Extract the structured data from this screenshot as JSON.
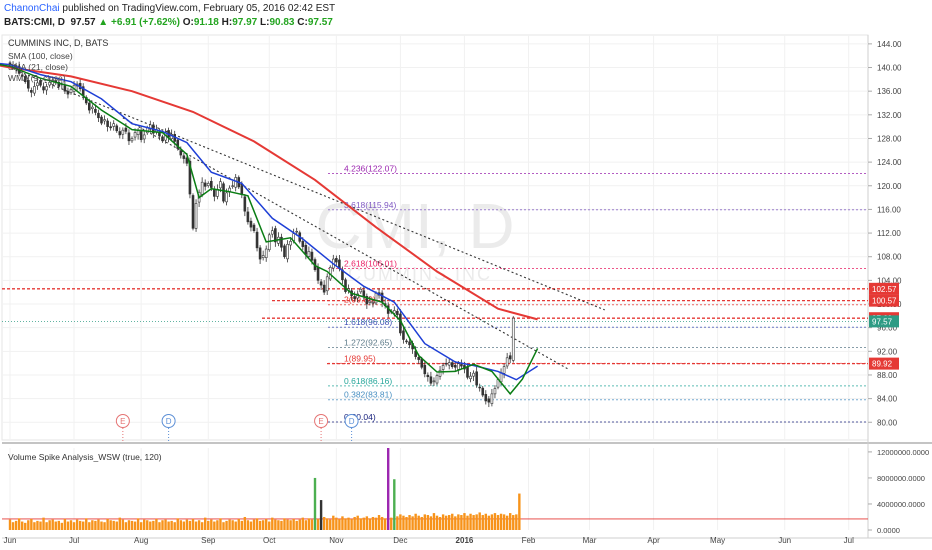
{
  "header": {
    "author": "ChanonChai",
    "published_text": " published on TradingView.com, February 05, 2016 02:42 EST",
    "symbol": "BATS:CMI, D",
    "last": "97.57",
    "change": "+6.91 (+7.62%)",
    "open_label": "O:",
    "open": "91.18",
    "high_label": "H:",
    "high": "97.97",
    "low_label": "L:",
    "low": "90.83",
    "close_label": "C:",
    "close": "97.57"
  },
  "watermark": {
    "symbol": "CMI, D",
    "name": "CUMMINS INC"
  },
  "chart_data": [
    {
      "type": "line",
      "title": "CUMMINS INC, D, BATS",
      "indicators": [
        "SMA (100, close)",
        "SMA (21, close)",
        "WMA (9, close)"
      ],
      "ylim": [
        77,
        145.5
      ],
      "y_ticks": [
        80,
        84,
        88,
        92,
        96,
        100,
        104,
        108,
        112,
        116,
        120,
        124,
        128,
        132,
        136,
        140,
        144
      ],
      "y_tick_labels": [
        "80.00",
        "84.00",
        "88.00",
        "92.00",
        "96.00",
        "100.00",
        "104.00",
        "108.00",
        "112.00",
        "116.00",
        "120.00",
        "124.00",
        "128.00",
        "132.00",
        "136.00",
        "140.00",
        "144.00"
      ],
      "x_tick_labels": [
        "Jun",
        "Jul",
        "Aug",
        "Sep",
        "Oct",
        "Nov",
        "Dec",
        "2016",
        "Feb",
        "Mar",
        "Apr",
        "May",
        "Jun",
        "Jul"
      ],
      "x_tick_idx": [
        0,
        21,
        43,
        65,
        85,
        107,
        128,
        149,
        170,
        190,
        211,
        232,
        254,
        275
      ],
      "date_range": [
        "2015-06-01",
        "2016-07-01"
      ],
      "close": [
        140.5,
        140.2,
        139.8,
        139.0,
        138.5,
        137.6,
        136.5,
        135.8,
        136.8,
        137.4,
        137.0,
        136.2,
        136.8,
        137.5,
        137.9,
        137.4,
        136.8,
        137.2,
        136.0,
        135.5,
        136.3,
        137.0,
        137.2,
        136.4,
        135.2,
        134.0,
        132.8,
        133.3,
        132.4,
        131.5,
        130.6,
        131.2,
        130.0,
        129.8,
        130.5,
        129.3,
        128.6,
        129.4,
        129.2,
        127.6,
        128.0,
        129.0,
        129.3,
        127.8,
        128.6,
        129.8,
        130.3,
        128.9,
        129.5,
        128.4,
        127.6,
        129.0,
        128.2,
        128.7,
        127.5,
        126.3,
        125.2,
        124.6,
        123.8,
        118.6,
        112.8,
        117.0,
        118.9,
        120.6,
        119.9,
        120.4,
        119.7,
        118.2,
        119.4,
        120.7,
        117.4,
        118.8,
        119.6,
        120.0,
        121.4,
        119.8,
        118.5,
        115.7,
        113.9,
        113.0,
        112.4,
        109.5,
        107.6,
        108.2,
        109.3,
        111.7,
        112.4,
        110.5,
        111.3,
        109.6,
        108.0,
        110.1,
        110.6,
        111.9,
        112.3,
        110.6,
        109.7,
        108.4,
        108.9,
        107.4,
        105.8,
        104.0,
        103.2,
        102.0,
        104.6,
        106.2,
        107.6,
        107.1,
        106.0,
        104.1,
        102.1,
        102.6,
        101.4,
        100.9,
        101.7,
        102.5,
        101.3,
        100.0,
        100.5,
        100.3,
        101.8,
        101.5,
        100.3,
        99.7,
        98.4,
        98.8,
        98.9,
        98.2,
        95.1,
        94.0,
        93.6,
        93.1,
        92.4,
        91.1,
        90.6,
        89.3,
        88.2,
        87.7,
        86.6,
        87.0,
        87.9,
        88.8,
        89.6,
        89.9,
        90.1,
        89.4,
        89.3,
        89.9,
        89.5,
        89.0,
        87.6,
        87.8,
        88.3,
        86.3,
        85.9,
        84.6,
        83.6,
        83.4,
        84.8,
        85.7,
        87.2,
        88.4,
        89.4,
        90.9,
        90.7,
        97.6
      ],
      "series": [
        {
          "name": "SMA (100, close)",
          "color": "#e53935",
          "points": [
            [
              -10,
              141.0
            ],
            [
              0,
              140.0
            ],
            [
              20,
              138.5
            ],
            [
              40,
              136.0
            ],
            [
              60,
              132.5
            ],
            [
              80,
              127.5
            ],
            [
              100,
              121.0
            ],
            [
              120,
              113.0
            ],
            [
              140,
              105.5
            ],
            [
              160,
              99.2
            ],
            [
              173,
              97.4
            ]
          ]
        },
        {
          "name": "SMA (21, close)",
          "color": "#1e3fd6",
          "points": [
            [
              -10,
              141.0
            ],
            [
              0,
              140.5
            ],
            [
              10,
              138.8
            ],
            [
              20,
              137.6
            ],
            [
              30,
              134.7
            ],
            [
              40,
              130.5
            ],
            [
              50,
              129.2
            ],
            [
              58,
              127.3
            ],
            [
              66,
              122.3
            ],
            [
              76,
              120.4
            ],
            [
              86,
              114.5
            ],
            [
              96,
              111.0
            ],
            [
              106,
              106.8
            ],
            [
              116,
              103.0
            ],
            [
              126,
              100.3
            ],
            [
              136,
              93.3
            ],
            [
              146,
              90.2
            ],
            [
              152,
              89.6
            ],
            [
              160,
              88.6
            ],
            [
              166,
              87.2
            ],
            [
              173,
              89.5
            ]
          ]
        },
        {
          "name": "WMA (9, close)",
          "color": "#0a7d14",
          "points": [
            [
              -10,
              141.0
            ],
            [
              0,
              140.2
            ],
            [
              10,
              138.2
            ],
            [
              20,
              136.8
            ],
            [
              30,
              132.8
            ],
            [
              40,
              129.5
            ],
            [
              50,
              129.0
            ],
            [
              58,
              125.3
            ],
            [
              62,
              118.0
            ],
            [
              66,
              119.5
            ],
            [
              72,
              119.0
            ],
            [
              78,
              118.3
            ],
            [
              84,
              110.5
            ],
            [
              92,
              111.2
            ],
            [
              100,
              106.5
            ],
            [
              104,
              105.5
            ],
            [
              112,
              101.8
            ],
            [
              122,
              100.3
            ],
            [
              128,
              97.2
            ],
            [
              134,
              91.3
            ],
            [
              140,
              88.5
            ],
            [
              146,
              88.6
            ],
            [
              152,
              89.8
            ],
            [
              158,
              88.6
            ],
            [
              164,
              84.8
            ],
            [
              168,
              87.3
            ],
            [
              173,
              92.5
            ]
          ]
        }
      ],
      "trendlines": [
        {
          "points": [
            [
              -5,
              141.0
            ],
            [
              195,
              99.0
            ]
          ],
          "style": "dotted",
          "color": "#333333"
        },
        {
          "points": [
            [
              37,
              131.5
            ],
            [
              183,
              89.0
            ]
          ],
          "style": "dotted",
          "color": "#333333"
        }
      ],
      "horizontal_lines": [
        {
          "price": 102.57,
          "label": "102.57",
          "color": "#e53935"
        },
        {
          "price": 100.57,
          "label": "100.57",
          "color": "#e53935"
        },
        {
          "price": 97.6,
          "label": "97.60",
          "color": "#e53935"
        },
        {
          "price": 89.92,
          "label": "89.92",
          "color": "#e53935"
        }
      ],
      "last_price": {
        "price": 97.57,
        "label": "97.57",
        "color": "#2e9b84"
      },
      "fibonacci": [
        {
          "label": "4.236(122.07)",
          "price": 122.07,
          "color": "#9c27b0"
        },
        {
          "label": "3.618(115.94)",
          "price": 115.94,
          "color": "#7e57c2"
        },
        {
          "label": "2.618(106.01)",
          "price": 106.01,
          "color": "#e91e63"
        },
        {
          "label": "2(99.88)",
          "price": 99.88,
          "color": "#e53935"
        },
        {
          "label": "1.618(96.08)",
          "price": 96.08,
          "color": "#3f51b5"
        },
        {
          "label": "1.272(92.65)",
          "price": 92.65,
          "color": "#607d8b"
        },
        {
          "label": "1(89.95)",
          "price": 89.95,
          "color": "#e53935"
        },
        {
          "label": "0.618(86.16)",
          "price": 86.16,
          "color": "#26a69a"
        },
        {
          "label": "0.382(83.81)",
          "price": 83.81,
          "color": "#4a90c2"
        },
        {
          "label": "0(80.04)",
          "price": 80.04,
          "color": "#1a237e"
        }
      ],
      "events": [
        {
          "letter": "E",
          "idx": 37,
          "color": "#e57373"
        },
        {
          "letter": "D",
          "idx": 52,
          "color": "#5c8fd6"
        },
        {
          "letter": "E",
          "idx": 102,
          "color": "#e57373"
        },
        {
          "letter": "D",
          "idx": 112,
          "color": "#5c8fd6"
        }
      ]
    },
    {
      "type": "bar",
      "title": "Volume Spike Analysis_WSW (true, 120)",
      "ylim": [
        0,
        12600000
      ],
      "y_ticks": [
        0,
        4000000,
        8000000,
        12000000
      ],
      "y_tick_labels": [
        "0.0000",
        "4000000.0000",
        "8000000.0000",
        "12000000.0000"
      ],
      "values": [
        1.6,
        1.2,
        1.4,
        1.8,
        1.3,
        1.1,
        1.5,
        1.7,
        1.2,
        1.4,
        1.3,
        1.9,
        1.2,
        1.5,
        1.6,
        1.3,
        1.4,
        1.1,
        1.7,
        1.3,
        1.5,
        1.2,
        1.6,
        1.4,
        1.3,
        1.8,
        1.2,
        1.5,
        1.4,
        1.6,
        1.3,
        1.2,
        1.7,
        1.5,
        1.4,
        1.3,
        1.9,
        1.6,
        1.2,
        1.5,
        1.4,
        1.3,
        1.8,
        1.2,
        1.6,
        1.5,
        1.3,
        1.4,
        1.7,
        1.2,
        1.5,
        1.6,
        1.3,
        1.4,
        1.2,
        1.8,
        1.5,
        1.3,
        1.6,
        1.4,
        1.7,
        1.3,
        1.5,
        1.2,
        1.9,
        1.4,
        1.6,
        1.3,
        1.5,
        1.8,
        1.2,
        1.4,
        1.6,
        1.5,
        1.3,
        1.7,
        1.4,
        2.0,
        1.5,
        1.3,
        1.6,
        1.8,
        1.4,
        1.5,
        1.7,
        1.3,
        1.9,
        1.6,
        1.5,
        1.4,
        1.8,
        1.6,
        1.5,
        1.7,
        1.4,
        1.6,
        1.9,
        1.5,
        1.8,
        1.6,
        8.0,
        1.7,
        4.6,
        2.0,
        1.8,
        1.6,
        2.2,
        1.9,
        1.7,
        2.1,
        1.8,
        1.9,
        1.7,
        2.0,
        2.2,
        1.8,
        1.9,
        2.1,
        1.8,
        2.0,
        1.9,
        2.3,
        2.0,
        1.8,
        12.6,
        1.9,
        7.8,
        2.1,
        2.4,
        2.2,
        2.0,
        2.3,
        2.1,
        2.5,
        2.2,
        2.0,
        2.4,
        2.3,
        2.1,
        2.6,
        2.2,
        2.0,
        2.4,
        2.2,
        2.3,
        2.5,
        2.1,
        2.4,
        2.3,
        2.6,
        2.2,
        2.5,
        2.3,
        2.4,
        2.7,
        2.3,
        2.5,
        2.2,
        2.4,
        2.6,
        2.3,
        2.5,
        2.4,
        2.2,
        2.6,
        2.3,
        2.4,
        5.6
      ],
      "values_scale": 1000000,
      "spike_idx": [
        100,
        102,
        124,
        126,
        173
      ],
      "colors": {
        "normal": "#f7931a",
        "spike_green": "#4caf50",
        "spike_purple": "#9c27b0",
        "spike_dark": "#333333"
      }
    }
  ]
}
